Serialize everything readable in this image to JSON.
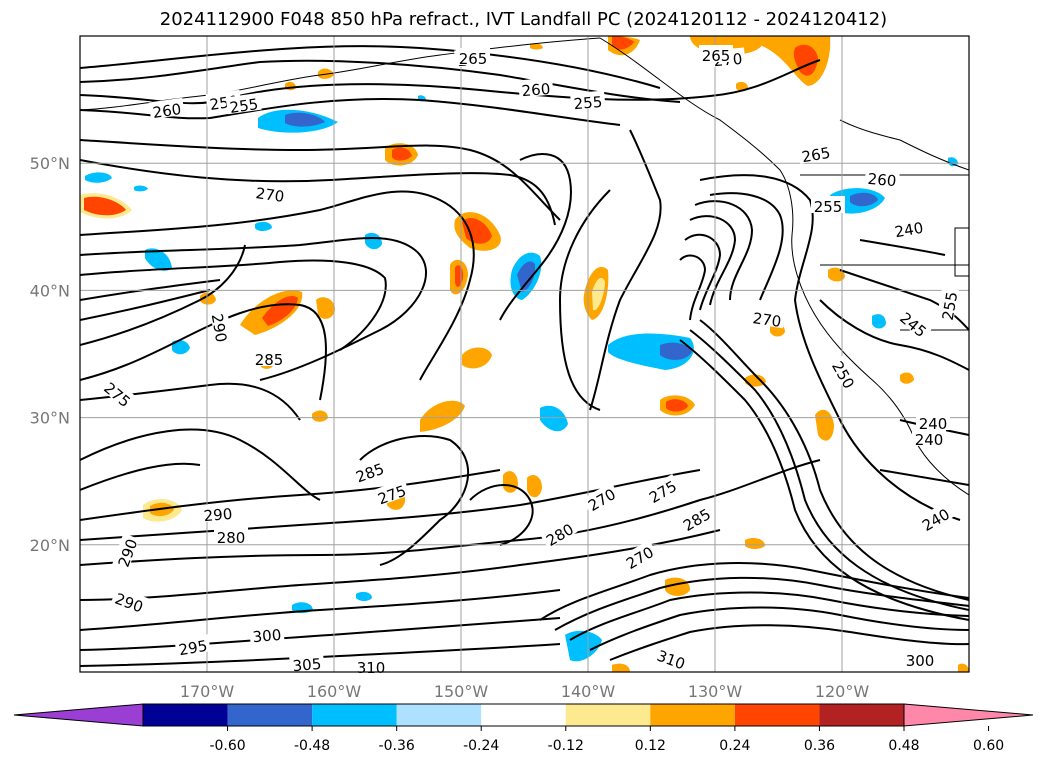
{
  "title": "2024112900 F048 850 hPa refract., IVT Landfall PC (2024120112 - 2024120412)",
  "map": {
    "lat_labels": [
      "50°N",
      "40°N",
      "30°N",
      "20°N"
    ],
    "lon_labels": [
      "170°W",
      "160°W",
      "150°W",
      "140°W",
      "130°W",
      "120°W"
    ],
    "extent": {
      "lon_min": -180,
      "lon_max": -110,
      "lat_min": 10,
      "lat_max": 60
    },
    "grid": true,
    "grid_color": "#a0a0a0",
    "coastline_color": "#000000"
  },
  "contours": {
    "variable": "850 hPa refractivity",
    "labels": [
      "265",
      "270",
      "260",
      "250",
      "255",
      "265",
      "260",
      "255",
      "270",
      "265",
      "260",
      "255",
      "240",
      "270",
      "265",
      "290",
      "285",
      "275",
      "285",
      "275",
      "290",
      "280",
      "290",
      "290",
      "295",
      "300",
      "305",
      "310",
      "310",
      "300",
      "280",
      "270",
      "275",
      "285",
      "270",
      "240",
      "250",
      "245",
      "240",
      "240",
      "255"
    ]
  },
  "shading": {
    "variable": "IVT landfall PC",
    "colorbar": {
      "ticks": [
        "-0.60",
        "-0.48",
        "-0.36",
        "-0.24",
        "-0.12",
        "0.12",
        "0.24",
        "0.36",
        "0.48",
        "0.60"
      ],
      "colors": [
        "#9a3ed4",
        "#010195",
        "#3366cc",
        "#00bfff",
        "#aee0ff",
        "#ffffff",
        "#fde98e",
        "#ffa500",
        "#ff4500",
        "#b22222",
        "#ff88aa"
      ],
      "extend": "both"
    }
  }
}
